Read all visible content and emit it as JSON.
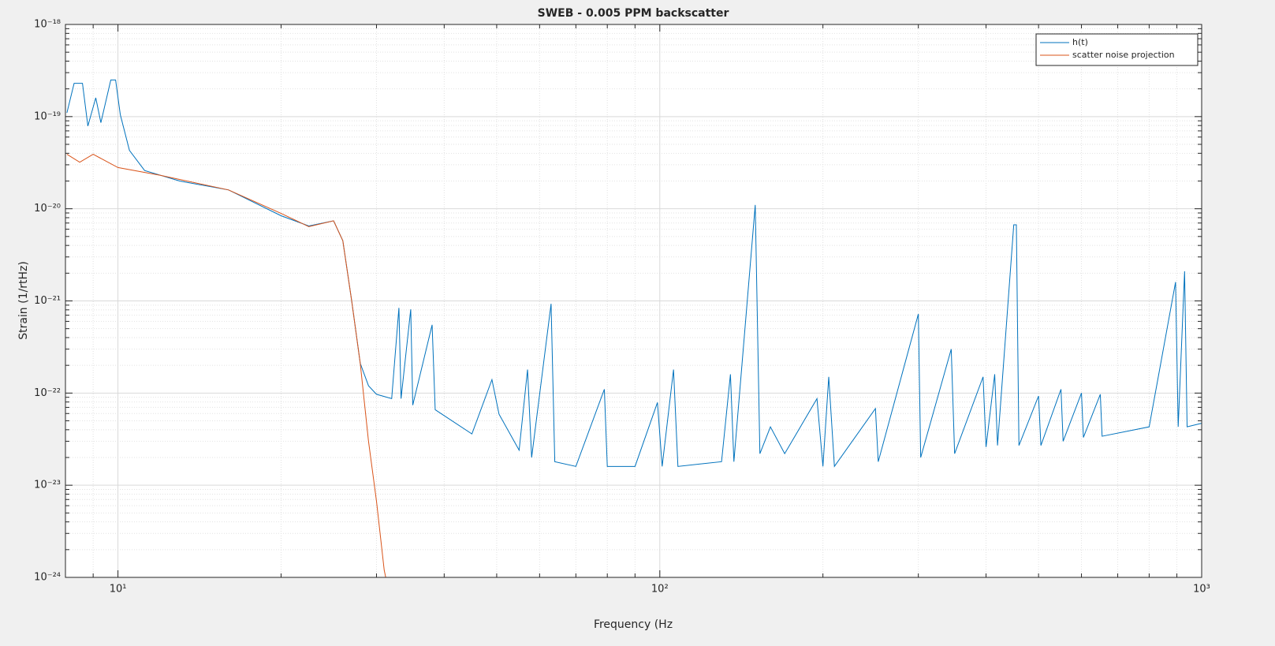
{
  "chart_data": {
    "type": "line",
    "title": "SWEB - 0.005 PPM backscatter",
    "xlabel": "Frequency (Hz",
    "ylabel": "Strain (1/rtHz)",
    "xscale": "log",
    "yscale": "log",
    "grid": true,
    "minor_grid": true,
    "legend": "northeast",
    "xlim": [
      8,
      1000
    ],
    "ylim": [
      1e-24,
      1e-18
    ],
    "xticks": [
      {
        "value": 10,
        "label": "10¹"
      },
      {
        "value": 100,
        "label": "10²"
      },
      {
        "value": 1000,
        "label": "10³"
      }
    ],
    "yticks": [
      {
        "value": 1e-24,
        "label": "10⁻²⁴"
      },
      {
        "value": 1e-23,
        "label": "10⁻²³"
      },
      {
        "value": 1e-22,
        "label": "10⁻²²"
      },
      {
        "value": 1e-21,
        "label": "10⁻²¹"
      },
      {
        "value": 1e-20,
        "label": "10⁻²⁰"
      },
      {
        "value": 1e-19,
        "label": "10⁻¹⁹"
      },
      {
        "value": 1e-18,
        "label": "10⁻¹⁸"
      }
    ],
    "series": [
      {
        "name": "h(t)",
        "color": "#0072bd",
        "x": [
          8.05,
          8.3,
          8.6,
          8.8,
          9.1,
          9.3,
          9.7,
          9.9,
          10.1,
          10.5,
          11.2,
          13,
          16,
          20,
          22.5,
          25,
          26,
          27,
          28,
          29,
          30,
          32,
          33,
          33.3,
          34.7,
          35,
          38,
          38.5,
          45,
          49,
          50.5,
          55,
          57,
          58,
          63,
          64,
          70,
          79,
          80,
          90,
          99,
          101,
          106,
          108,
          130,
          135,
          137,
          150,
          153,
          160,
          170,
          195,
          200,
          205,
          210,
          250,
          253,
          300,
          303,
          345,
          350,
          395,
          400,
          415,
          420,
          450,
          455,
          460,
          500,
          505,
          550,
          555,
          600,
          605,
          650,
          655,
          800,
          895,
          905,
          930,
          940,
          1000
        ],
        "values": [
          1.1e-19,
          2.3e-19,
          2.3e-19,
          7.9e-20,
          1.6e-19,
          8.6e-20,
          2.5e-19,
          2.5e-19,
          1.05e-19,
          4.3e-20,
          2.6e-20,
          2e-20,
          1.6e-20,
          8.4e-21,
          6.5e-21,
          7.4e-21,
          4.5e-21,
          1e-21,
          2.1e-22,
          1.2e-22,
          9.7e-23,
          8.7e-23,
          8.4e-22,
          8.7e-23,
          8.1e-22,
          7.4e-23,
          5.5e-22,
          6.6e-23,
          3.6e-23,
          1.4e-22,
          5.9e-23,
          2.4e-23,
          1.8e-22,
          2e-23,
          9.3e-22,
          1.8e-23,
          1.6e-23,
          1.1e-22,
          1.6e-23,
          1.6e-23,
          7.9e-23,
          1.6e-23,
          1.8e-22,
          1.6e-23,
          1.8e-23,
          1.6e-22,
          1.8e-23,
          1.1e-20,
          2.2e-23,
          4.3e-23,
          2.2e-23,
          8.7e-23,
          1.6e-23,
          1.5e-22,
          1.6e-23,
          6.8e-23,
          1.8e-23,
          7.2e-22,
          2e-23,
          3e-22,
          2.2e-23,
          1.5e-22,
          2.6e-23,
          1.6e-22,
          2.7e-23,
          6.7e-21,
          6.7e-21,
          2.7e-23,
          9.3e-23,
          2.7e-23,
          1.1e-22,
          3e-23,
          1e-22,
          3.3e-23,
          9.7e-23,
          3.4e-23,
          4.3e-23,
          1.6e-21,
          4.3e-23,
          2.1e-21,
          4.3e-23,
          4.7e-23
        ]
      },
      {
        "name": "scatter noise projection",
        "color": "#d95319",
        "x": [
          8.05,
          8.5,
          9,
          10,
          12,
          16,
          20,
          22.5,
          25,
          26,
          27,
          28,
          29,
          30,
          31,
          31.2
        ],
        "values": [
          3.9e-20,
          3.2e-20,
          3.9e-20,
          2.8e-20,
          2.3e-20,
          1.6e-20,
          8.9e-21,
          6.4e-21,
          7.4e-21,
          4.5e-21,
          1e-21,
          2.1e-22,
          3e-23,
          6.7e-24,
          1.2e-24,
          1e-24
        ]
      }
    ]
  }
}
